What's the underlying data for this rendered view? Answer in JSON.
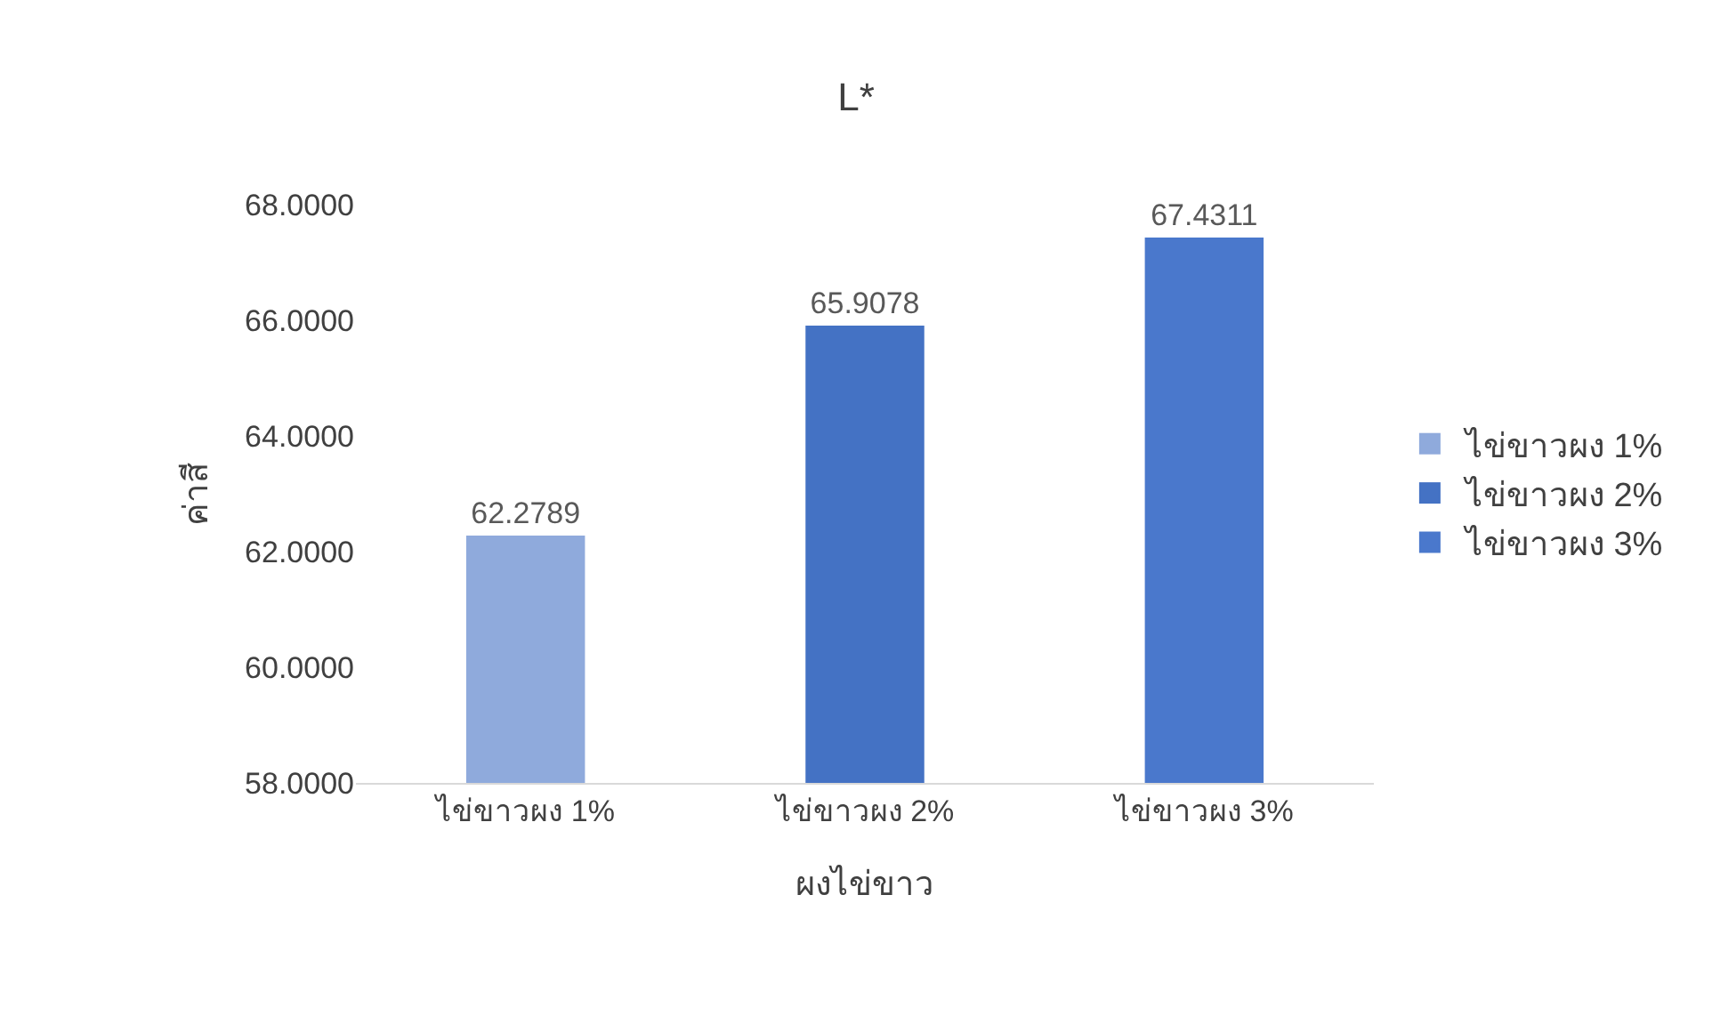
{
  "chart_data": {
    "type": "bar",
    "title": "L*",
    "xlabel": "ผงไข่ขาว",
    "ylabel": "ค่าสี",
    "categories": [
      "ไข่ขาวผง 1%",
      "ไข่ขาวผง 2%",
      "ไข่ขาวผง 3%"
    ],
    "series": [
      {
        "name": "ไข่ขาวผง 1%",
        "color": "#8faadc",
        "values": [
          62.2789,
          null,
          null
        ]
      },
      {
        "name": "ไข่ขาวผง 2%",
        "color": "#4472c4",
        "values": [
          null,
          65.9078,
          null
        ]
      },
      {
        "name": "ไข่ขาวผง 3%",
        "color": "#4a78cc",
        "values": [
          null,
          null,
          67.4311
        ]
      }
    ],
    "ylim": [
      58,
      68
    ],
    "yticks": [
      {
        "value": 58,
        "label": "58.0000"
      },
      {
        "value": 60,
        "label": "60.0000"
      },
      {
        "value": 62,
        "label": "62.0000"
      },
      {
        "value": 64,
        "label": "64.0000"
      },
      {
        "value": 66,
        "label": "66.0000"
      },
      {
        "value": 68,
        "label": "68.0000"
      }
    ],
    "data_labels": true,
    "grid": false,
    "legend": "right"
  }
}
